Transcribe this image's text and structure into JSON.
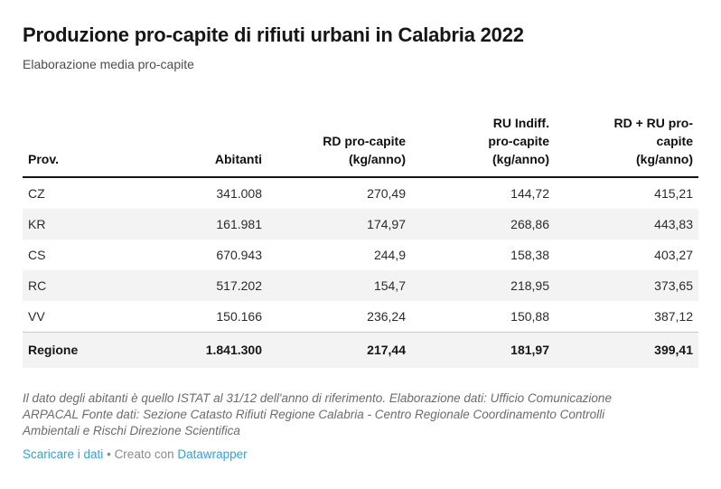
{
  "header": {
    "title": "Produzione pro-capite di rifiuti urbani in Calabria 2022",
    "subtitle": "Elaborazione media pro-capite"
  },
  "table": {
    "header_lines": [
      [
        "Prov."
      ],
      [
        "Abitanti"
      ],
      [
        "RD pro-capite",
        "(kg/anno)"
      ],
      [
        "RU Indiff.",
        "pro-capite",
        "(kg/anno)"
      ],
      [
        "RD + RU pro-",
        "capite",
        "(kg/anno)"
      ]
    ]
  },
  "chart_data": {
    "type": "table",
    "title": "Produzione pro-capite di rifiuti urbani in Calabria 2022",
    "subtitle": "Elaborazione media pro-capite",
    "columns": [
      "Prov.",
      "Abitanti",
      "RD pro-capite (kg/anno)",
      "RU Indiff. pro-capite (kg/anno)",
      "RD + RU pro-capite (kg/anno)"
    ],
    "rows": [
      [
        "CZ",
        "341.008",
        "270,49",
        "144,72",
        "415,21"
      ],
      [
        "KR",
        "161.981",
        "174,97",
        "268,86",
        "443,83"
      ],
      [
        "CS",
        "670.943",
        "244,9",
        "158,38",
        "403,27"
      ],
      [
        "RC",
        "517.202",
        "154,7",
        "218,95",
        "373,65"
      ],
      [
        "VV",
        "150.166",
        "236,24",
        "150,88",
        "387,12"
      ],
      [
        "Regione",
        "1.841.300",
        "217,44",
        "181,97",
        "399,41"
      ]
    ],
    "layout_hints": {
      "total_row_index": 5,
      "striped_rows": true,
      "numeric_format": "italian (comma decimal, dot thousands)"
    }
  },
  "footer": {
    "note": "Il dato degli abitanti è quello ISTAT al 31/12 dell'anno di riferimento. Elaborazione dati: Ufficio Comunicazione ARPACAL Fonte dati: Sezione Catasto Rifiuti Regione Calabria - Centro Regionale Coordinamento Controlli Ambientali e Rischi Direzione Scientifica",
    "download_label": "Scaricare i dati",
    "separator": "•",
    "credit_text": "Creato con",
    "credit_link": "Datawrapper"
  },
  "colors": {
    "link_blue": "#35a0dc",
    "stripe_gray": "#f3f3f3",
    "header_rule": "#141414",
    "text_dark": "#262626",
    "muted_gray": "#6b6b6b"
  }
}
